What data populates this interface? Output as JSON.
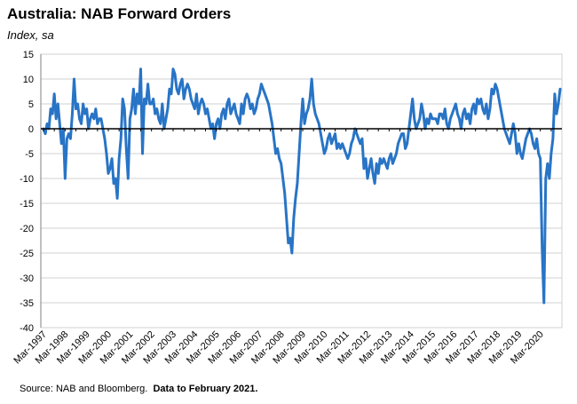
{
  "title": "Australia: NAB Forward Orders",
  "subtitle": "Index, sa",
  "source": {
    "text": "Source: NAB and Bloomberg.",
    "note": "Data to February 2021."
  },
  "chart_data": {
    "type": "line",
    "title": "Australia: NAB Forward Orders",
    "ylabel": "Index, sa",
    "xlabel": "",
    "ylim": [
      -40,
      15
    ],
    "yticks": [
      15,
      10,
      5,
      0,
      -5,
      -10,
      -15,
      -20,
      -25,
      -30,
      -35,
      -40
    ],
    "xtick_labels": [
      "Mar-1997",
      "Mar-1998",
      "Mar-1999",
      "Mar-2000",
      "Mar-2001",
      "Mar-2002",
      "Mar-2003",
      "Mar-2004",
      "Mar-2005",
      "Mar-2006",
      "Mar-2007",
      "Mar-2008",
      "Mar-2009",
      "Mar-2010",
      "Mar-2011",
      "Mar-2012",
      "Mar-2013",
      "Mar-2014",
      "Mar-2015",
      "Mar-2016",
      "Mar-2017",
      "Mar-2018",
      "Mar-2019",
      "Mar-2020"
    ],
    "x_start": "Mar-1997",
    "x_end": "Feb-2021",
    "frequency": "monthly",
    "grid": true,
    "line_color": "#2874c6",
    "series": [
      {
        "values": [
          0,
          -1,
          1,
          0,
          4,
          3,
          7,
          2,
          5,
          1,
          -3,
          0,
          -10,
          -2,
          -1,
          -2,
          3,
          10,
          4,
          5,
          2,
          1,
          5,
          3,
          4,
          0,
          2,
          3,
          2,
          4,
          1,
          2,
          2,
          0,
          -2,
          -5,
          -9,
          -8,
          -6,
          -11,
          -10,
          -14,
          -6,
          -2,
          6,
          4,
          -4,
          -10,
          2,
          4,
          8,
          3,
          7,
          5,
          12,
          -5,
          6,
          5,
          9,
          5,
          5,
          6,
          3,
          4,
          2,
          1,
          5,
          0,
          2,
          4,
          8,
          7,
          12,
          11,
          8,
          7,
          9,
          10,
          6,
          8,
          9,
          8,
          6,
          5,
          4,
          7,
          3,
          5,
          6,
          5,
          3,
          4,
          2,
          0,
          1,
          -2,
          1,
          2,
          0,
          3,
          4,
          2,
          5,
          6,
          3,
          4,
          5,
          3,
          2,
          1,
          5,
          3,
          6,
          7,
          6,
          4,
          5,
          3,
          4,
          6,
          7,
          9,
          8,
          7,
          6,
          5,
          3,
          1,
          -2,
          -5,
          -4,
          -6,
          -7,
          -10,
          -13,
          -18,
          -23,
          -22,
          -25,
          -18,
          -14,
          -11,
          -5,
          1,
          6,
          1,
          3,
          4,
          6,
          10,
          5,
          3,
          2,
          1,
          -1,
          -3,
          -5,
          -4,
          -2,
          -1,
          -3,
          -2,
          -1,
          -4,
          -3,
          -4,
          -3,
          -4,
          -5,
          -6,
          -5,
          -3,
          -2,
          0,
          -1,
          -2,
          -3,
          -2,
          -8,
          -6,
          -10,
          -8,
          -6,
          -9,
          -11,
          -7,
          -9,
          -6,
          -7,
          -6,
          -7,
          -8,
          -6,
          -5,
          -7,
          -6,
          -5,
          -3,
          -2,
          -1,
          -1,
          -4,
          -3,
          0,
          3,
          6,
          2,
          0,
          1,
          2,
          5,
          3,
          0,
          2,
          1,
          3,
          2,
          2,
          2,
          1,
          3,
          3,
          2,
          4,
          1,
          0,
          2,
          3,
          4,
          5,
          3,
          2,
          0,
          3,
          4,
          2,
          3,
          1,
          4,
          5,
          3,
          6,
          5,
          6,
          4,
          3,
          5,
          2,
          4,
          8,
          7,
          9,
          8,
          6,
          4,
          2,
          0,
          -1,
          -2,
          -3,
          -1,
          1,
          -1,
          -5,
          -3,
          -5,
          -6,
          -4,
          -2,
          -1,
          0,
          -1,
          -3,
          -4,
          -2,
          -5,
          -6,
          -24,
          -35,
          -10,
          -7,
          -10,
          -5,
          -2,
          7,
          3,
          5,
          8
        ]
      }
    ]
  }
}
